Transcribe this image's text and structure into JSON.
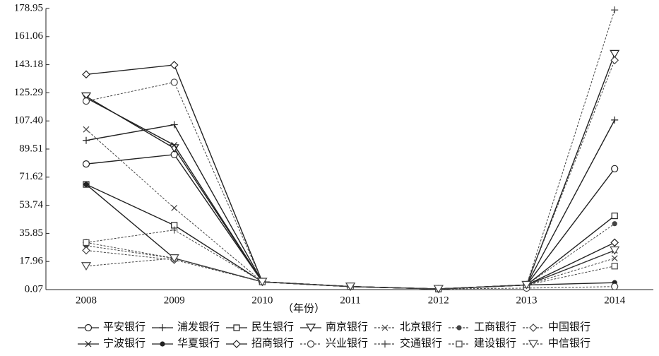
{
  "chart_data": {
    "type": "line",
    "x_label": "（年份）",
    "categories": [
      "2008",
      "2009",
      "2010",
      "2011",
      "2012",
      "2013",
      "2014"
    ],
    "ylim": [
      0.07,
      178.95
    ],
    "yticks": [
      0.07,
      17.96,
      35.85,
      53.74,
      71.62,
      89.51,
      {
        "value": 107.4,
        "label": "107.40"
      },
      125.29,
      143.18,
      161.06,
      178.95
    ],
    "series": [
      {
        "name": "平安银行",
        "color": "#222",
        "marker": "circle",
        "dashed": false,
        "values": [
          80,
          86,
          5,
          2,
          0.5,
          3,
          77
        ]
      },
      {
        "name": "浦发银行",
        "color": "#222",
        "marker": "plus",
        "dashed": false,
        "values": [
          95,
          105,
          5,
          2,
          0.5,
          3,
          108
        ]
      },
      {
        "name": "民生银行",
        "color": "#222",
        "marker": "square",
        "dashed": false,
        "values": [
          67,
          41,
          5,
          2,
          0.5,
          3,
          47
        ]
      },
      {
        "name": "南京银行",
        "color": "#222",
        "marker": "triangle",
        "dashed": false,
        "values": [
          123,
          90,
          5,
          2,
          0.5,
          3,
          150
        ]
      },
      {
        "name": "北京银行",
        "color": "#444",
        "marker": "x",
        "dashed": true,
        "values": [
          102,
          52,
          5,
          2,
          0.5,
          3,
          20
        ]
      },
      {
        "name": "工商银行",
        "color": "#444",
        "marker": "dot",
        "dashed": true,
        "values": [
          28,
          20,
          5,
          2,
          0.5,
          3,
          42
        ]
      },
      {
        "name": "中国银行",
        "color": "#444",
        "marker": "diamond",
        "dashed": true,
        "values": [
          25,
          19,
          5,
          2,
          0.5,
          3,
          146
        ]
      },
      {
        "name": "宁波银行",
        "color": "#222",
        "marker": "x",
        "dashed": false,
        "values": [
          122,
          92,
          5,
          2,
          0.5,
          3,
          25
        ]
      },
      {
        "name": "华夏银行",
        "color": "#222",
        "marker": "dot",
        "dashed": false,
        "values": [
          67,
          20,
          5,
          2,
          0.5,
          3,
          4.5
        ]
      },
      {
        "name": "招商银行",
        "color": "#222",
        "marker": "diamond",
        "dashed": false,
        "values": [
          137,
          143,
          5,
          2,
          0.5,
          3,
          30
        ]
      },
      {
        "name": "兴业银行",
        "color": "#444",
        "marker": "circle",
        "dashed": true,
        "values": [
          120,
          132,
          5,
          2,
          0.5,
          1,
          2
        ]
      },
      {
        "name": "交通银行",
        "color": "#444",
        "marker": "plus",
        "dashed": true,
        "values": [
          30,
          38,
          5,
          2,
          0.5,
          3,
          178
        ]
      },
      {
        "name": "建设银行",
        "color": "#444",
        "marker": "square",
        "dashed": true,
        "values": [
          30,
          20,
          5,
          2,
          0.5,
          3,
          15
        ]
      },
      {
        "name": "中信银行",
        "color": "#444",
        "marker": "triangle",
        "dashed": true,
        "values": [
          15,
          20,
          5,
          2,
          0.5,
          3,
          25
        ]
      }
    ]
  }
}
